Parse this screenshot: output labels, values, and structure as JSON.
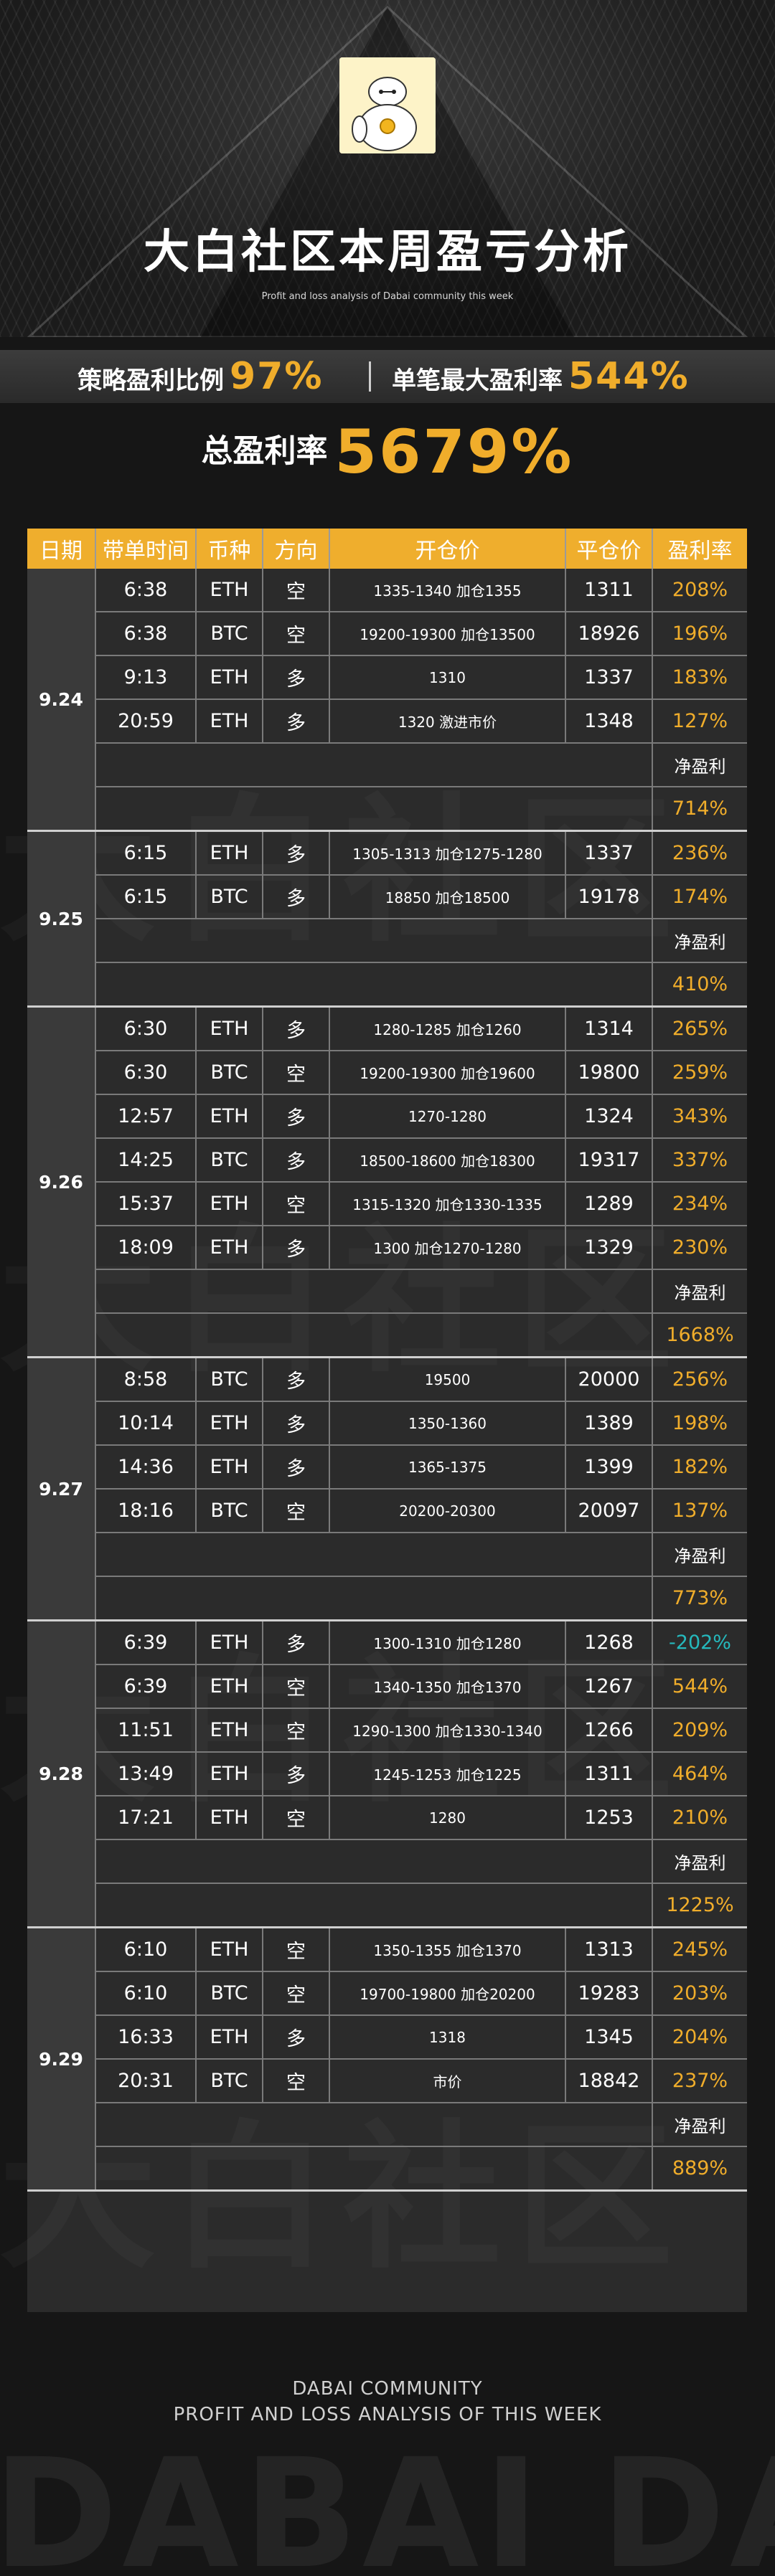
{
  "header": {
    "title": "大白社区本周盈亏分析",
    "subtitle": "Profit and loss analysis of Dabai community this week"
  },
  "stats": {
    "strategy_label": "策略盈利比例",
    "strategy_value": "97%",
    "max_label": "单笔最大盈利率",
    "max_value": "544%",
    "total_label": "总盈利率",
    "total_value": "5679%"
  },
  "table": {
    "headers": [
      "日期",
      "带单时间",
      "币种",
      "方向",
      "开仓价",
      "平仓价",
      "盈利率"
    ],
    "net_label": "净盈利",
    "blocks": [
      {
        "date": "9.24",
        "rows": [
          {
            "time": "6:38",
            "coin": "ETH",
            "dir": "空",
            "open": "1335-1340  加仓1355",
            "close": "1311",
            "rate": "208%"
          },
          {
            "time": "6:38",
            "coin": "BTC",
            "dir": "空",
            "open": "19200-19300  加仓13500",
            "close": "18926",
            "rate": "196%"
          },
          {
            "time": "9:13",
            "coin": "ETH",
            "dir": "多",
            "open": "1310",
            "close": "1337",
            "rate": "183%"
          },
          {
            "time": "20:59",
            "coin": "ETH",
            "dir": "多",
            "open": "1320  激进市价",
            "close": "1348",
            "rate": "127%"
          }
        ],
        "net": "714%"
      },
      {
        "date": "9.25",
        "rows": [
          {
            "time": "6:15",
            "coin": "ETH",
            "dir": "多",
            "open": "1305-1313  加仓1275-1280",
            "close": "1337",
            "rate": "236%"
          },
          {
            "time": "6:15",
            "coin": "BTC",
            "dir": "多",
            "open": "18850  加仓18500",
            "close": "19178",
            "rate": "174%"
          }
        ],
        "net": "410%"
      },
      {
        "date": "9.26",
        "rows": [
          {
            "time": "6:30",
            "coin": "ETH",
            "dir": "多",
            "open": "1280-1285  加仓1260",
            "close": "1314",
            "rate": "265%"
          },
          {
            "time": "6:30",
            "coin": "BTC",
            "dir": "空",
            "open": "19200-19300  加仓19600",
            "close": "19800",
            "rate": "259%"
          },
          {
            "time": "12:57",
            "coin": "ETH",
            "dir": "多",
            "open": "1270-1280",
            "close": "1324",
            "rate": "343%"
          },
          {
            "time": "14:25",
            "coin": "BTC",
            "dir": "多",
            "open": "18500-18600  加仓18300",
            "close": "19317",
            "rate": "337%"
          },
          {
            "time": "15:37",
            "coin": "ETH",
            "dir": "空",
            "open": "1315-1320  加仓1330-1335",
            "close": "1289",
            "rate": "234%"
          },
          {
            "time": "18:09",
            "coin": "ETH",
            "dir": "多",
            "open": "1300  加仓1270-1280",
            "close": "1329",
            "rate": "230%"
          }
        ],
        "net": "1668%"
      },
      {
        "date": "9.27",
        "rows": [
          {
            "time": "8:58",
            "coin": "BTC",
            "dir": "多",
            "open": "19500",
            "close": "20000",
            "rate": "256%"
          },
          {
            "time": "10:14",
            "coin": "ETH",
            "dir": "多",
            "open": "1350-1360",
            "close": "1389",
            "rate": "198%"
          },
          {
            "time": "14:36",
            "coin": "ETH",
            "dir": "多",
            "open": "1365-1375",
            "close": "1399",
            "rate": "182%"
          },
          {
            "time": "18:16",
            "coin": "BTC",
            "dir": "空",
            "open": "20200-20300",
            "close": "20097",
            "rate": "137%"
          }
        ],
        "net": "773%"
      },
      {
        "date": "9.28",
        "rows": [
          {
            "time": "6:39",
            "coin": "ETH",
            "dir": "多",
            "open": "1300-1310  加仓1280",
            "close": "1268",
            "rate": "-202%",
            "neg": true
          },
          {
            "time": "6:39",
            "coin": "ETH",
            "dir": "空",
            "open": "1340-1350  加仓1370",
            "close": "1267",
            "rate": "544%"
          },
          {
            "time": "11:51",
            "coin": "ETH",
            "dir": "空",
            "open": "1290-1300  加仓1330-1340",
            "close": "1266",
            "rate": "209%"
          },
          {
            "time": "13:49",
            "coin": "ETH",
            "dir": "多",
            "open": "1245-1253  加仓1225",
            "close": "1311",
            "rate": "464%"
          },
          {
            "time": "17:21",
            "coin": "ETH",
            "dir": "空",
            "open": "1280",
            "close": "1253",
            "rate": "210%"
          }
        ],
        "net": "1225%"
      },
      {
        "date": "9.29",
        "rows": [
          {
            "time": "6:10",
            "coin": "ETH",
            "dir": "空",
            "open": "1350-1355  加仓1370",
            "close": "1313",
            "rate": "245%"
          },
          {
            "time": "6:10",
            "coin": "BTC",
            "dir": "空",
            "open": "19700-19800  加仓20200",
            "close": "19283",
            "rate": "203%"
          },
          {
            "time": "16:33",
            "coin": "ETH",
            "dir": "多",
            "open": "1318",
            "close": "1345",
            "rate": "204%"
          },
          {
            "time": "20:31",
            "coin": "BTC",
            "dir": "空",
            "open": "市价",
            "close": "18842",
            "rate": "237%"
          }
        ],
        "net": "889%"
      }
    ]
  },
  "footer": {
    "line1": "DABAI COMMUNITY",
    "line2": "PROFIT AND LOSS ANALYSIS OF THIS WEEK",
    "watermark": "DABAI DABAI"
  },
  "colors": {
    "accent": "#f0ad2b",
    "negative": "#25b9bd",
    "header_bg": "#efae2d",
    "background": "#161616"
  }
}
